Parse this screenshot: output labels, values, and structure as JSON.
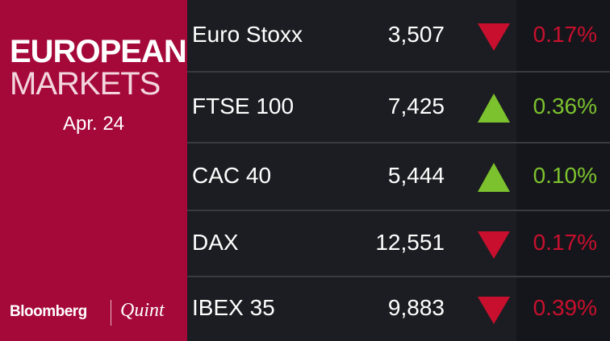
{
  "panel": {
    "title_line1": "EUROPEAN",
    "title_line2": "MARKETS",
    "date": "Apr. 24",
    "brand": "Bloomberg",
    "brand2": "Quint"
  },
  "table": {
    "rows": [
      {
        "name": "Euro Stoxx",
        "value": "3,507",
        "direction": "down",
        "change": "0.17%"
      },
      {
        "name": "FTSE 100",
        "value": "7,425",
        "direction": "up",
        "change": "0.36%"
      },
      {
        "name": "CAC 40",
        "value": "5,444",
        "direction": "up",
        "change": "0.10%"
      },
      {
        "name": "DAX",
        "value": "12,551",
        "direction": "down",
        "change": "0.17%"
      },
      {
        "name": "IBEX 35",
        "value": "9,883",
        "direction": "down",
        "change": "0.39%"
      }
    ]
  },
  "colors": {
    "up": "#7cc22e",
    "down": "#c8102e"
  }
}
